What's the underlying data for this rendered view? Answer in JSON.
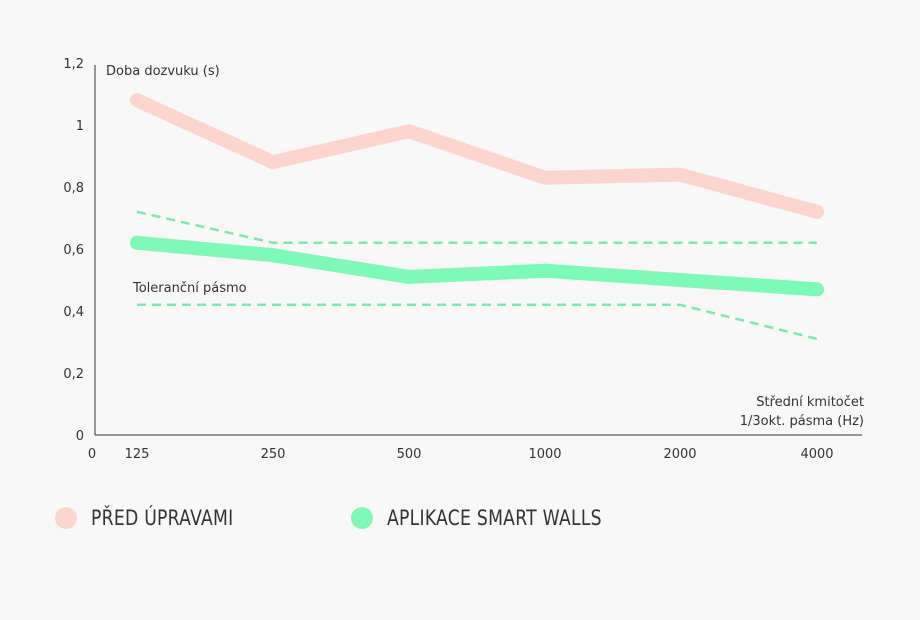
{
  "chart_data": {
    "type": "line",
    "categories": [
      "125",
      "250",
      "500",
      "1000",
      "2000",
      "4000"
    ],
    "x_origin_label": "0",
    "ylim": [
      0,
      1.2
    ],
    "yticks": [
      "0",
      "0,2",
      "0,4",
      "0,6",
      "0,8",
      "1",
      "1,2"
    ],
    "ytick_values": [
      0,
      0.2,
      0.4,
      0.6,
      0.8,
      1.0,
      1.2
    ],
    "ylabel": "Doba dozvuku (s)",
    "xlabel_line1": "Střední kmitočet",
    "xlabel_line2": "1/3okt. pásma (Hz)",
    "series": [
      {
        "name": "PŘED ÚPRAVAMI",
        "color": "#fdd5cc",
        "values": [
          1.08,
          0.88,
          0.98,
          0.83,
          0.84,
          0.72
        ]
      },
      {
        "name": "APLIKACE SMART WALLS",
        "color": "#7dfab5",
        "values": [
          0.62,
          0.58,
          0.51,
          0.53,
          0.5,
          0.47
        ]
      }
    ],
    "tolerance_band": {
      "label": "Toleranční pásmo",
      "color": "#7fe9ad",
      "upper": [
        0.72,
        0.62,
        0.62,
        0.62,
        0.62,
        0.62
      ],
      "lower": [
        0.42,
        0.42,
        0.42,
        0.42,
        0.42,
        0.31
      ]
    }
  },
  "legend": {
    "items": [
      {
        "label": "PŘED ÚPRAVAMI",
        "color": "#fdd5cc"
      },
      {
        "label": "APLIKACE SMART WALLS",
        "color": "#7dfab5"
      }
    ]
  }
}
